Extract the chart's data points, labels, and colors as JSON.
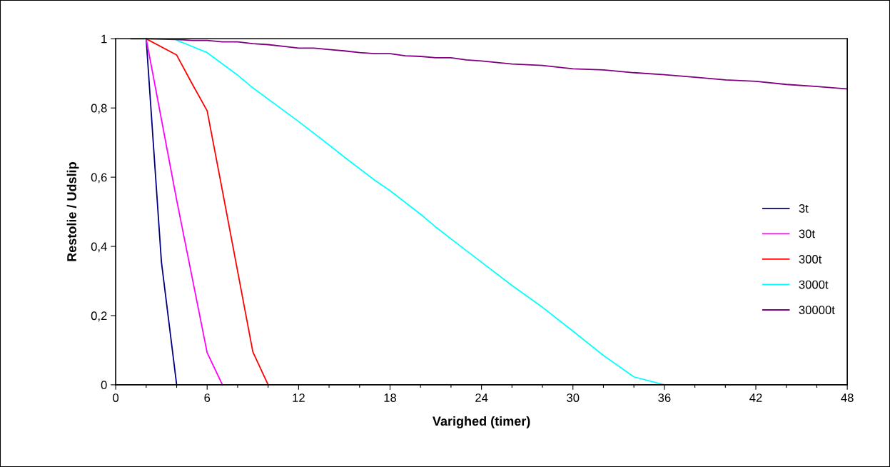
{
  "chart_data": {
    "type": "line",
    "xlabel": "Varighed (timer)",
    "ylabel": "Restolie / Udslip",
    "xlim": [
      0,
      48
    ],
    "xticks": [
      0,
      {
        "value": 2,
        "label": null
      },
      {
        "value": 4,
        "label": null
      },
      6,
      {
        "value": 8,
        "label": null
      },
      {
        "value": 10,
        "label": null
      },
      12,
      {
        "value": 14,
        "label": null
      },
      {
        "value": 16,
        "label": null
      },
      18,
      {
        "value": 20,
        "label": null
      },
      {
        "value": 22,
        "label": null
      },
      24,
      {
        "value": 26,
        "label": null
      },
      {
        "value": 28,
        "label": null
      },
      30,
      {
        "value": 32,
        "label": null
      },
      {
        "value": 34,
        "label": null
      },
      36,
      {
        "value": 38,
        "label": null
      },
      {
        "value": 40,
        "label": null
      },
      42,
      {
        "value": 44,
        "label": null
      },
      {
        "value": 46,
        "label": null
      },
      48
    ],
    "ylim": [
      0,
      1
    ],
    "yticks": [
      0,
      {
        "value": 0.2,
        "label": "0,2"
      },
      {
        "value": 0.4,
        "label": "0,4"
      },
      {
        "value": 0.6,
        "label": "0,6"
      },
      {
        "value": 0.8,
        "label": "0,8"
      },
      1
    ],
    "grid": false,
    "legend": "right",
    "marker": "none",
    "line_style": "solid",
    "series": [
      {
        "name": "3t",
        "color": "#000080",
        "x": [
          2,
          3,
          4
        ],
        "values": [
          1,
          0.355,
          0
        ]
      },
      {
        "name": "30t",
        "color": "#ff00ff",
        "x": [
          2,
          4,
          6,
          7
        ],
        "values": [
          1,
          0.534,
          0.093,
          0
        ]
      },
      {
        "name": "300t",
        "color": "#ff0000",
        "x": [
          2,
          4,
          5,
          6,
          7,
          8,
          9,
          10
        ],
        "values": [
          1,
          0.953,
          0.871,
          0.792,
          0.561,
          0.328,
          0.095,
          0
        ]
      },
      {
        "name": "3000t",
        "color": "#00ffff",
        "x": [
          4,
          6,
          8,
          9,
          12,
          14,
          15,
          17,
          18,
          20,
          21,
          23,
          26,
          28,
          30,
          32,
          34,
          36
        ],
        "values": [
          0.996,
          0.96,
          0.895,
          0.858,
          0.761,
          0.693,
          0.658,
          0.591,
          0.561,
          0.493,
          0.456,
          0.388,
          0.287,
          0.224,
          0.155,
          0.085,
          0.023,
          0
        ]
      },
      {
        "name": "30000t",
        "color": "#800080",
        "x": [
          1,
          2,
          4,
          5,
          6,
          7,
          8,
          9,
          10,
          11,
          12,
          13,
          14,
          15,
          16,
          17,
          18,
          19,
          20,
          21,
          22,
          23,
          24,
          26,
          28,
          30,
          32,
          34,
          36,
          38,
          40,
          42,
          44,
          46,
          48
        ],
        "values": [
          1,
          1,
          0.998,
          0.995,
          0.995,
          0.991,
          0.991,
          0.986,
          0.983,
          0.978,
          0.973,
          0.973,
          0.969,
          0.965,
          0.96,
          0.957,
          0.957,
          0.951,
          0.949,
          0.945,
          0.945,
          0.939,
          0.936,
          0.927,
          0.923,
          0.913,
          0.91,
          0.902,
          0.896,
          0.889,
          0.881,
          0.877,
          0.868,
          0.862,
          0.855
        ]
      }
    ]
  }
}
